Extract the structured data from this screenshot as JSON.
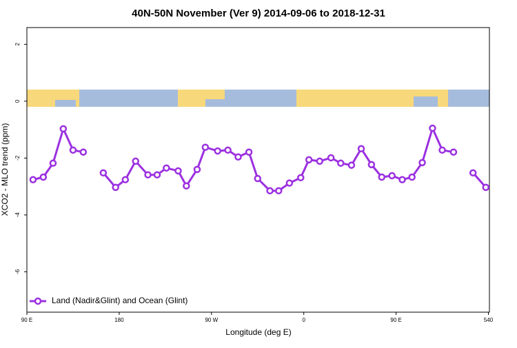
{
  "chart_data": {
    "type": "line",
    "title": "40N-50N November (Ver 9)   2014-09-06 to 2018-12-31",
    "x_label": "Longitude (deg E)",
    "y_label": "XCO2 - MLO trend (ppm)",
    "xlim": [
      90,
      541
    ],
    "ylim": [
      -7.42,
      2.59
    ],
    "xticks": [
      {
        "value": 90,
        "label": "90 E"
      },
      180,
      {
        "value": 270,
        "label": "90 W"
      },
      {
        "value": 360,
        "label": "0"
      },
      {
        "value": 450,
        "label": "90 E"
      },
      540
    ],
    "yticks": [
      -6,
      -4,
      -2,
      0,
      2
    ],
    "legend_position": "bottom-left",
    "series": [
      {
        "name": "Land (Nadir&Glint) and Ocean (Glint)",
        "color": "#9b30e0",
        "x": [
          96,
          106,
          115.5,
          125.5,
          135,
          145,
          155,
          164.5,
          176.5,
          186,
          196,
          208,
          217,
          226,
          237.5,
          245.5,
          256,
          264,
          276,
          286,
          296,
          306.5,
          315,
          327,
          335.5,
          346,
          357,
          365,
          375.5,
          386.5,
          396,
          406.5,
          416,
          426,
          436,
          446,
          456,
          465.5,
          475.5,
          485.5,
          495,
          506,
          516,
          525,
          537.5
        ],
        "values": [
          -2.76,
          -2.67,
          -2.18,
          -0.97,
          -1.72,
          -1.79,
          null,
          -2.52,
          -3.03,
          -2.76,
          -2.11,
          -2.59,
          -2.59,
          -2.35,
          -2.45,
          -2.98,
          -2.4,
          -1.62,
          -1.75,
          -1.72,
          -1.96,
          -1.79,
          -2.72,
          -3.15,
          -3.15,
          -2.88,
          -2.69,
          -2.06,
          -2.11,
          -1.99,
          -2.18,
          -2.25,
          -1.67,
          -2.23,
          -2.67,
          -2.62,
          -2.76,
          -2.67,
          -2.16,
          -0.95,
          -1.72,
          -1.79,
          null,
          -2.52,
          -3.03
        ]
      }
    ]
  }
}
